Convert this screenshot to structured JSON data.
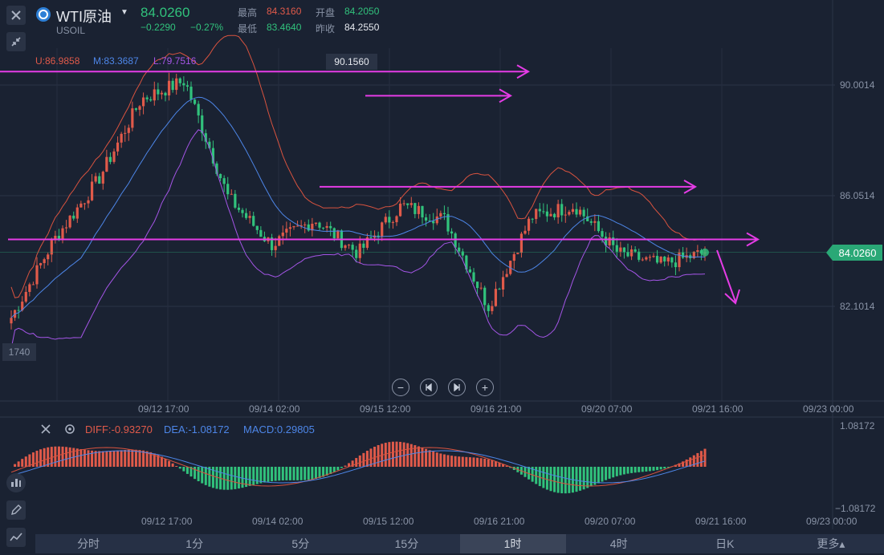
{
  "header": {
    "symbol_name": "WTI原油",
    "symbol_code": "USOIL",
    "last_price": "84.0260",
    "change": "−0.2290",
    "change_pct": "−0.27%",
    "high_label": "最高",
    "high": "84.3160",
    "open_label": "开盘",
    "open": "84.2050",
    "low_label": "最低",
    "low": "83.4640",
    "prev_label": "昨收",
    "prev": "84.2550"
  },
  "indicators": {
    "boll_upper": "U:86.9858",
    "boll_mid": "M:83.3687",
    "boll_lower": "L:79.7516",
    "macd_diff": "DIFF:-0.93270",
    "macd_dea": "DEA:-1.08172",
    "macd_value": "MACD:0.29805"
  },
  "chart_data": [
    {
      "type": "candlestick",
      "title": "WTI原油 1时",
      "y_ticks": [
        "90.0014",
        "86.0514",
        "82.1014"
      ],
      "y_range_labels": [
        "90.0014",
        "82.1014"
      ],
      "x_ticks": [
        "09/12 17:00",
        "09/14 02:00",
        "09/15 12:00",
        "09/16 21:00",
        "09/20 07:00",
        "09/21 16:00",
        "09/23 00:00"
      ],
      "current_price": "84.0260",
      "max_marker": "90.1560",
      "left_edge_label": "1740",
      "key_prices": [
        81.7,
        84.5,
        86.6,
        89.5,
        90.15,
        86.0,
        84.3,
        85.2,
        84.0,
        85.7,
        85.2,
        82.1,
        85.3,
        85.7,
        84.0,
        83.6,
        84.02
      ],
      "bollinger": {
        "upper": 86.9858,
        "middle": 83.3687,
        "lower": 79.7516
      },
      "annotation_levels": [
        90.48,
        89.62,
        86.37,
        84.49
      ]
    },
    {
      "type": "bar",
      "title": "MACD",
      "y_ticks": [
        "1.08172",
        "−1.08172"
      ],
      "x_ticks": [
        "09/12 17:00",
        "09/14 02:00",
        "09/15 12:00",
        "09/16 21:00",
        "09/20 07:00",
        "09/21 16:00",
        "09/23 00:00"
      ],
      "series": [
        {
          "name": "DIFF",
          "value": -0.9327
        },
        {
          "name": "DEA",
          "value": -1.08172
        },
        {
          "name": "MACD",
          "value": 0.29805
        }
      ]
    }
  ],
  "timeframes": [
    "分时",
    "1分",
    "5分",
    "15分",
    "1时",
    "4时",
    "日K",
    "更多▴"
  ],
  "active_timeframe": "1时",
  "colors": {
    "up": "#e05a4a",
    "down": "#31c27c",
    "bg": "#1a2232",
    "annotation": "#e53ce6",
    "mid": "#4d86e8",
    "lower": "#a455e6",
    "upper": "#d8533f"
  }
}
